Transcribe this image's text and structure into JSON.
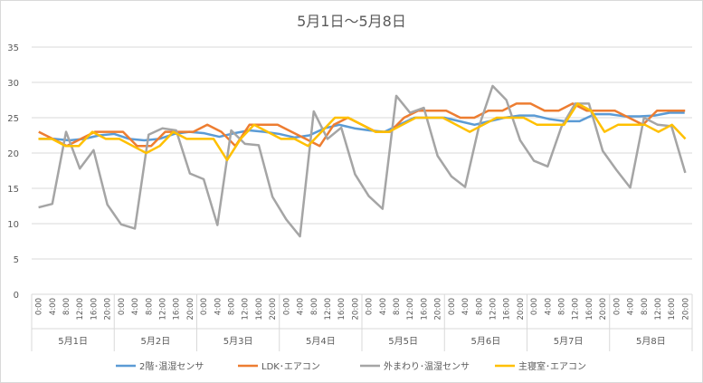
{
  "chart_data": {
    "type": "line",
    "title": "5月1日～5月8日",
    "ylim": [
      0,
      35
    ],
    "yticks": [
      0,
      5,
      10,
      15,
      20,
      25,
      30,
      35
    ],
    "grid": true,
    "legend_position": "bottom",
    "x_time_labels": [
      "0:00",
      "4:00",
      "8:00",
      "12:00",
      "16:00",
      "20:00"
    ],
    "days": [
      "5月1日",
      "5月2日",
      "5月3日",
      "5月4日",
      "5月5日",
      "5月6日",
      "5月7日",
      "5月8日"
    ],
    "series": [
      {
        "name": "2階･温湿センサ",
        "color": "#5b9bd5",
        "values": [
          22,
          22,
          21.8,
          22,
          22.5,
          22.7,
          22,
          21.8,
          22,
          22.7,
          23,
          22.8,
          22.3,
          22.8,
          23.2,
          23,
          22.7,
          22.2,
          22.5,
          23.5,
          24,
          23.5,
          23.2,
          23,
          24,
          25,
          25,
          25,
          24.5,
          24,
          24.5,
          25,
          25.3,
          25.3,
          24.8,
          24.5,
          24.5,
          25.5,
          25.5,
          25.2,
          25.2,
          25.3,
          25.7,
          25.7
        ]
      },
      {
        "name": "LDK･エアコン",
        "color": "#ed7d31",
        "values": [
          23,
          22,
          21,
          22,
          23,
          23,
          23,
          21,
          21,
          23,
          23,
          23,
          24,
          23,
          21,
          24,
          24,
          24,
          23,
          22,
          21,
          24,
          25,
          24,
          23,
          23,
          25,
          26,
          26,
          26,
          25,
          25,
          26,
          26,
          27,
          27,
          26,
          26,
          27,
          26,
          26,
          26,
          25,
          24,
          26,
          26,
          26
        ]
      },
      {
        "name": "外まわり･温湿センサ",
        "color": "#a5a5a5",
        "values": [
          12.3,
          12.8,
          23,
          17.8,
          20.4,
          12.7,
          9.9,
          9.3,
          22.6,
          23.5,
          23.2,
          17.1,
          16.3,
          9.8,
          23.2,
          21.3,
          21.1,
          13.8,
          10.6,
          8.2,
          25.9,
          22,
          23.6,
          17,
          13.9,
          12.1,
          28.1,
          25.7,
          26.4,
          19.6,
          16.7,
          15.2,
          23.7,
          29.5,
          27.5,
          21.8,
          18.9,
          18.1,
          23.7,
          27,
          27,
          20.3,
          17.6,
          15.1,
          25,
          24,
          23.8,
          17.2
        ]
      },
      {
        "name": "主寝室･エアコン",
        "color": "#ffc000",
        "values": [
          22,
          22,
          21,
          21,
          23,
          22,
          22,
          21,
          20,
          21,
          23,
          22,
          22,
          22,
          19,
          22,
          24,
          23,
          22,
          22,
          21,
          23,
          25,
          25,
          24,
          23,
          23,
          24,
          25,
          25,
          25,
          24,
          23,
          24,
          25,
          25,
          25,
          24,
          24,
          24,
          27,
          26,
          23,
          24,
          24,
          24,
          23,
          24,
          22
        ]
      }
    ]
  }
}
